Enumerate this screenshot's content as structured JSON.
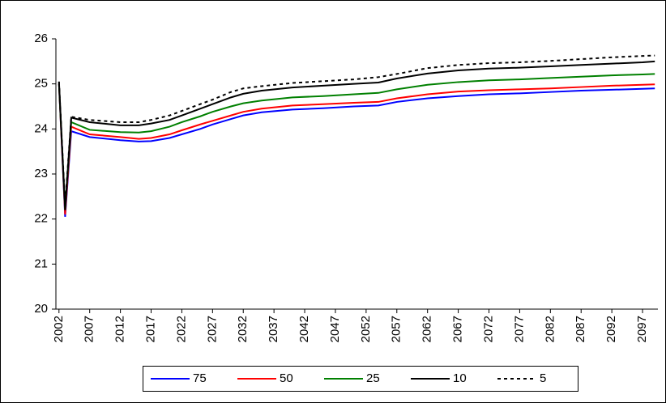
{
  "chart_data": {
    "type": "line",
    "x": [
      2002,
      2003,
      2004,
      2007,
      2012,
      2015,
      2017,
      2020,
      2022,
      2025,
      2027,
      2030,
      2032,
      2035,
      2040,
      2045,
      2050,
      2054,
      2057,
      2062,
      2067,
      2072,
      2077,
      2082,
      2087,
      2092,
      2097,
      2099
    ],
    "series": [
      {
        "name": "75",
        "color": "#0000ff",
        "dash": false,
        "values": [
          25.0,
          22.05,
          23.95,
          23.82,
          23.75,
          23.72,
          23.73,
          23.8,
          23.88,
          24.0,
          24.1,
          24.22,
          24.3,
          24.37,
          24.43,
          24.46,
          24.5,
          24.52,
          24.6,
          24.68,
          24.73,
          24.77,
          24.79,
          24.82,
          24.85,
          24.87,
          24.89,
          24.9
        ]
      },
      {
        "name": "50",
        "color": "#ff0000",
        "dash": false,
        "values": [
          25.0,
          22.1,
          24.05,
          23.88,
          23.82,
          23.78,
          23.8,
          23.88,
          23.97,
          24.1,
          24.18,
          24.3,
          24.38,
          24.45,
          24.52,
          24.55,
          24.58,
          24.6,
          24.68,
          24.77,
          24.83,
          24.86,
          24.88,
          24.9,
          24.93,
          24.96,
          24.98,
          24.99
        ]
      },
      {
        "name": "25",
        "color": "#008000",
        "dash": false,
        "values": [
          25.0,
          22.2,
          24.15,
          23.98,
          23.93,
          23.92,
          23.95,
          24.05,
          24.15,
          24.28,
          24.38,
          24.5,
          24.57,
          24.63,
          24.7,
          24.73,
          24.77,
          24.8,
          24.88,
          24.98,
          25.04,
          25.08,
          25.1,
          25.13,
          25.16,
          25.19,
          25.21,
          25.22
        ]
      },
      {
        "name": "10",
        "color": "#000000",
        "dash": false,
        "values": [
          25.05,
          22.2,
          24.25,
          24.15,
          24.08,
          24.08,
          24.12,
          24.2,
          24.3,
          24.45,
          24.55,
          24.7,
          24.78,
          24.85,
          24.92,
          24.96,
          25.0,
          25.03,
          25.12,
          25.23,
          25.3,
          25.34,
          25.36,
          25.39,
          25.42,
          25.45,
          25.48,
          25.5
        ]
      },
      {
        "name": "5",
        "color": "#000000",
        "dash": true,
        "values": [
          25.05,
          22.3,
          24.27,
          24.2,
          24.15,
          24.15,
          24.2,
          24.3,
          24.4,
          24.55,
          24.65,
          24.82,
          24.9,
          24.95,
          25.02,
          25.06,
          25.1,
          25.15,
          25.22,
          25.35,
          25.42,
          25.46,
          25.48,
          25.51,
          25.55,
          25.59,
          25.62,
          25.63
        ]
      }
    ],
    "xlim": [
      2001.5,
      2099.5
    ],
    "xticks": [
      2002,
      2007,
      2012,
      2017,
      2022,
      2027,
      2032,
      2037,
      2042,
      2047,
      2052,
      2057,
      2062,
      2067,
      2072,
      2077,
      2082,
      2087,
      2092,
      2097
    ],
    "ylim": [
      20,
      26
    ],
    "yticks": [
      20,
      21,
      22,
      23,
      24,
      25,
      26
    ],
    "legend": "bottom"
  }
}
